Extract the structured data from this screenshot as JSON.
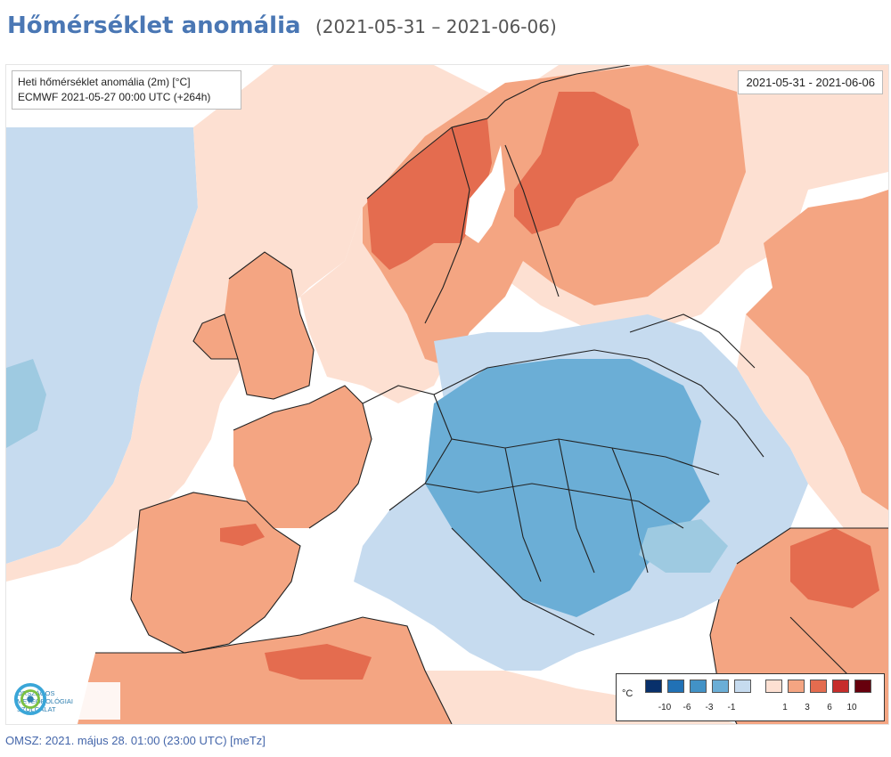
{
  "header": {
    "title": "Hőmérséklet anomália",
    "subtitle": "(2021-05-31 – 2021-06-06)"
  },
  "map": {
    "info_left_line1": "Heti hőmérséklet anomália (2m) [°C]",
    "info_left_line2": "ECMWF 2021-05-27 00:00 UTC (+264h)",
    "date_range_box": "2021-05-31 - 2021-06-06"
  },
  "logo": {
    "line1": "Országos",
    "line2": "Meteorológiai",
    "line3": "Szolgálat"
  },
  "legend": {
    "unit": "°C",
    "colors": [
      "#08306b",
      "#2171b5",
      "#4292c6",
      "#6baed6",
      "#c6dbef",
      "#fde0d2",
      "#f4a582",
      "#e46c4f",
      "#c62d2b",
      "#67000d"
    ],
    "ticks": [
      {
        "label": "-10"
      },
      {
        "label": "-6"
      },
      {
        "label": "-3"
      },
      {
        "label": "-1"
      },
      {
        "label": "1"
      },
      {
        "label": "3"
      },
      {
        "label": "6"
      },
      {
        "label": "10"
      }
    ]
  },
  "footer": {
    "text": "OMSZ: 2021. május 28. 01:00 (23:00 UTC)  [meTz]"
  }
}
